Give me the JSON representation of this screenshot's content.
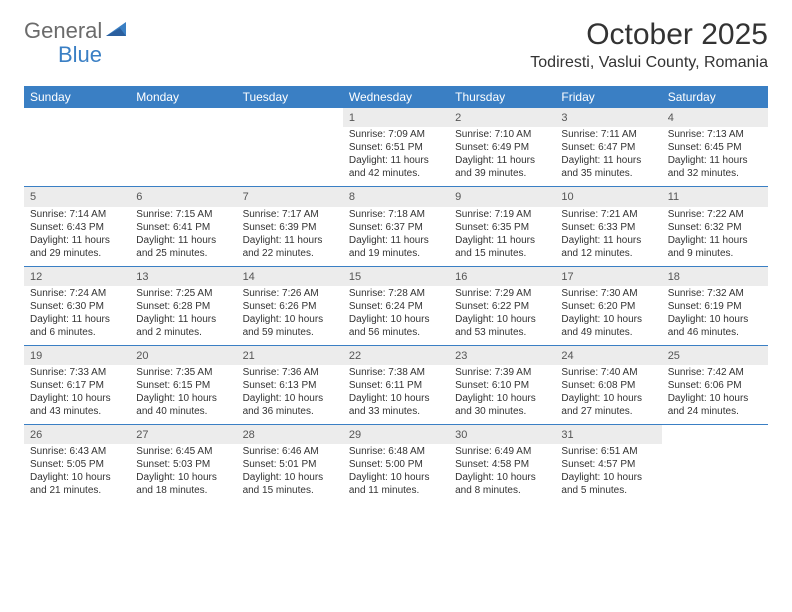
{
  "logo": {
    "text1": "General",
    "text2": "Blue",
    "text1_color": "#6b6b6b",
    "text2_color": "#3a7fc4"
  },
  "title": "October 2025",
  "location": "Todiresti, Vaslui County, Romania",
  "colors": {
    "header_bg": "#3a7fc4",
    "header_fg": "#ffffff",
    "daynum_bg": "#ececec",
    "rule": "#3a7fc4",
    "text": "#333333"
  },
  "day_headers": [
    "Sunday",
    "Monday",
    "Tuesday",
    "Wednesday",
    "Thursday",
    "Friday",
    "Saturday"
  ],
  "weeks": [
    [
      null,
      null,
      null,
      {
        "n": "1",
        "sr": "7:09 AM",
        "ss": "6:51 PM",
        "dl": "11 hours and 42 minutes."
      },
      {
        "n": "2",
        "sr": "7:10 AM",
        "ss": "6:49 PM",
        "dl": "11 hours and 39 minutes."
      },
      {
        "n": "3",
        "sr": "7:11 AM",
        "ss": "6:47 PM",
        "dl": "11 hours and 35 minutes."
      },
      {
        "n": "4",
        "sr": "7:13 AM",
        "ss": "6:45 PM",
        "dl": "11 hours and 32 minutes."
      }
    ],
    [
      {
        "n": "5",
        "sr": "7:14 AM",
        "ss": "6:43 PM",
        "dl": "11 hours and 29 minutes."
      },
      {
        "n": "6",
        "sr": "7:15 AM",
        "ss": "6:41 PM",
        "dl": "11 hours and 25 minutes."
      },
      {
        "n": "7",
        "sr": "7:17 AM",
        "ss": "6:39 PM",
        "dl": "11 hours and 22 minutes."
      },
      {
        "n": "8",
        "sr": "7:18 AM",
        "ss": "6:37 PM",
        "dl": "11 hours and 19 minutes."
      },
      {
        "n": "9",
        "sr": "7:19 AM",
        "ss": "6:35 PM",
        "dl": "11 hours and 15 minutes."
      },
      {
        "n": "10",
        "sr": "7:21 AM",
        "ss": "6:33 PM",
        "dl": "11 hours and 12 minutes."
      },
      {
        "n": "11",
        "sr": "7:22 AM",
        "ss": "6:32 PM",
        "dl": "11 hours and 9 minutes."
      }
    ],
    [
      {
        "n": "12",
        "sr": "7:24 AM",
        "ss": "6:30 PM",
        "dl": "11 hours and 6 minutes."
      },
      {
        "n": "13",
        "sr": "7:25 AM",
        "ss": "6:28 PM",
        "dl": "11 hours and 2 minutes."
      },
      {
        "n": "14",
        "sr": "7:26 AM",
        "ss": "6:26 PM",
        "dl": "10 hours and 59 minutes."
      },
      {
        "n": "15",
        "sr": "7:28 AM",
        "ss": "6:24 PM",
        "dl": "10 hours and 56 minutes."
      },
      {
        "n": "16",
        "sr": "7:29 AM",
        "ss": "6:22 PM",
        "dl": "10 hours and 53 minutes."
      },
      {
        "n": "17",
        "sr": "7:30 AM",
        "ss": "6:20 PM",
        "dl": "10 hours and 49 minutes."
      },
      {
        "n": "18",
        "sr": "7:32 AM",
        "ss": "6:19 PM",
        "dl": "10 hours and 46 minutes."
      }
    ],
    [
      {
        "n": "19",
        "sr": "7:33 AM",
        "ss": "6:17 PM",
        "dl": "10 hours and 43 minutes."
      },
      {
        "n": "20",
        "sr": "7:35 AM",
        "ss": "6:15 PM",
        "dl": "10 hours and 40 minutes."
      },
      {
        "n": "21",
        "sr": "7:36 AM",
        "ss": "6:13 PM",
        "dl": "10 hours and 36 minutes."
      },
      {
        "n": "22",
        "sr": "7:38 AM",
        "ss": "6:11 PM",
        "dl": "10 hours and 33 minutes."
      },
      {
        "n": "23",
        "sr": "7:39 AM",
        "ss": "6:10 PM",
        "dl": "10 hours and 30 minutes."
      },
      {
        "n": "24",
        "sr": "7:40 AM",
        "ss": "6:08 PM",
        "dl": "10 hours and 27 minutes."
      },
      {
        "n": "25",
        "sr": "7:42 AM",
        "ss": "6:06 PM",
        "dl": "10 hours and 24 minutes."
      }
    ],
    [
      {
        "n": "26",
        "sr": "6:43 AM",
        "ss": "5:05 PM",
        "dl": "10 hours and 21 minutes."
      },
      {
        "n": "27",
        "sr": "6:45 AM",
        "ss": "5:03 PM",
        "dl": "10 hours and 18 minutes."
      },
      {
        "n": "28",
        "sr": "6:46 AM",
        "ss": "5:01 PM",
        "dl": "10 hours and 15 minutes."
      },
      {
        "n": "29",
        "sr": "6:48 AM",
        "ss": "5:00 PM",
        "dl": "10 hours and 11 minutes."
      },
      {
        "n": "30",
        "sr": "6:49 AM",
        "ss": "4:58 PM",
        "dl": "10 hours and 8 minutes."
      },
      {
        "n": "31",
        "sr": "6:51 AM",
        "ss": "4:57 PM",
        "dl": "10 hours and 5 minutes."
      },
      null
    ]
  ],
  "labels": {
    "sunrise": "Sunrise:",
    "sunset": "Sunset:",
    "daylight": "Daylight:"
  }
}
